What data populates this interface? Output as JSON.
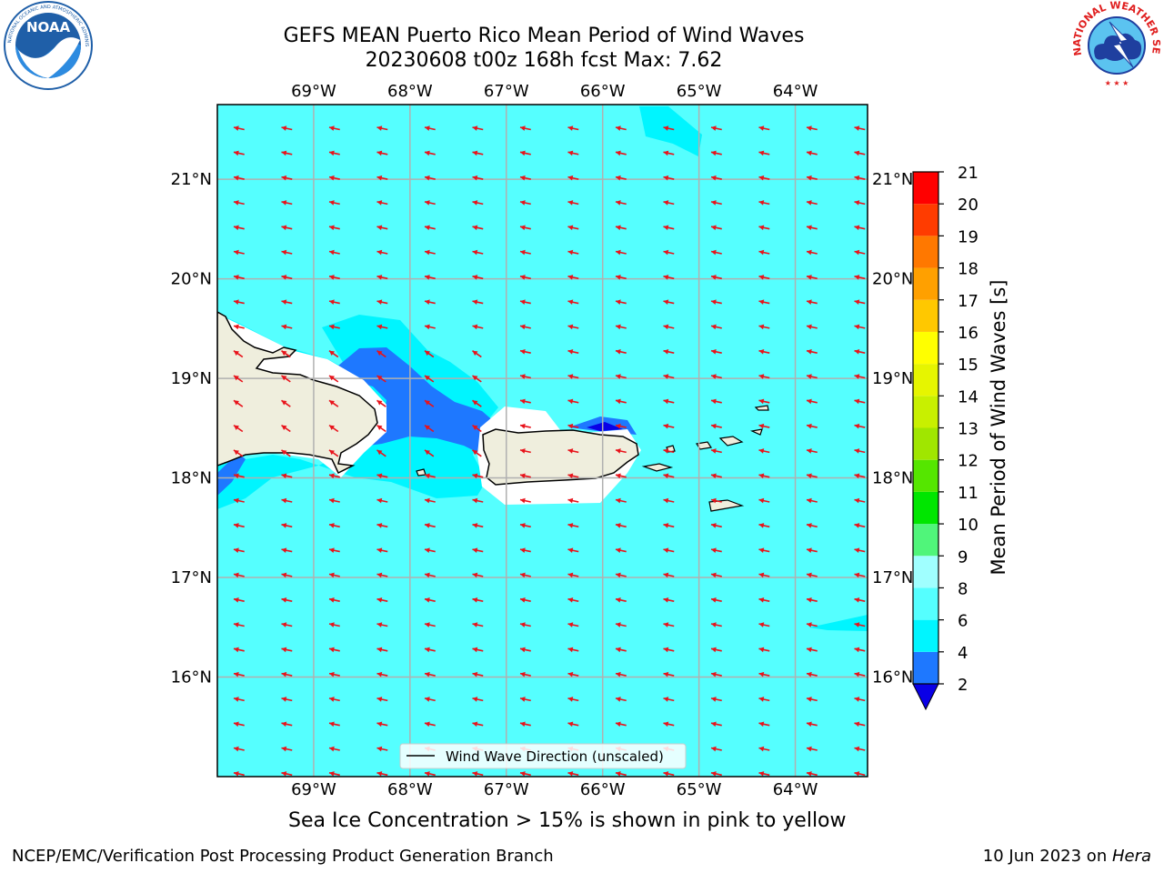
{
  "header": {
    "title_line1": "GEFS MEAN Puerto Rico Mean Period of Wind Waves",
    "title_line2": "20230608 t00z 168h fcst   Max: 7.62"
  },
  "logos": {
    "left": {
      "icon": "noaa-logo",
      "text": "NOAA",
      "ring_text": "NATIONAL OCEANIC AND ATMOSPHERIC ADMINISTRATION · U.S. DEPARTMENT OF COMMERCE",
      "color": "#1f5fa8"
    },
    "right": {
      "icon": "nws-logo",
      "ring_text": "NATIONAL WEATHER SERVICE",
      "color": "#e02020"
    }
  },
  "map": {
    "lon_labels": [
      "69°W",
      "68°W",
      "67°W",
      "66°W",
      "65°W",
      "64°W"
    ],
    "lat_labels": [
      "21°N",
      "20°N",
      "19°N",
      "18°N",
      "17°N",
      "16°N"
    ],
    "extent": {
      "lon": [
        -70.0,
        -63.25
      ],
      "lat": [
        15.0,
        21.75
      ]
    },
    "ocean_color": "#55ffff",
    "land_color": "#efeedd",
    "arrow_color": "#e8131b",
    "legend_label": "Wind Wave Direction (unscaled)"
  },
  "colorbar": {
    "label": "Mean Period of Wind Waves [s]",
    "ticks": [
      "2",
      "4",
      "6",
      "8",
      "9",
      "10",
      "11",
      "12",
      "13",
      "14",
      "15",
      "16",
      "17",
      "18",
      "19",
      "20",
      "21"
    ],
    "colors": [
      "#0a00e6",
      "#1e78ff",
      "#00f5ff",
      "#55ffff",
      "#a0ffff",
      "#50f57a",
      "#00e600",
      "#55e600",
      "#a0e600",
      "#c8f000",
      "#e6f500",
      "#ffff00",
      "#ffc800",
      "#ffa000",
      "#ff7800",
      "#ff3c00",
      "#ff0000"
    ]
  },
  "caption": "Sea Ice Concentration > 15% is shown in pink to yellow",
  "footer": {
    "left": "NCEP/EMC/Verification Post Processing Product Generation Branch",
    "right_date": "10 Jun 2023 on ",
    "right_host": "Hera"
  }
}
